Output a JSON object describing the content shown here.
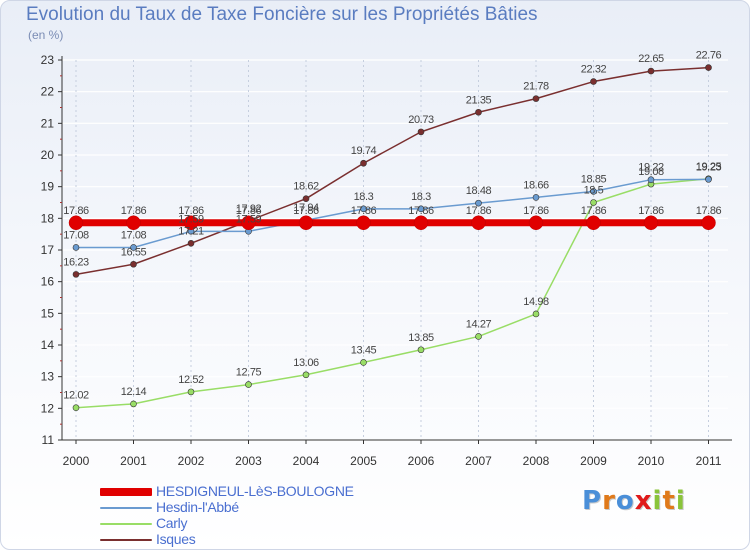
{
  "title": "Evolution du Taux de Taxe Foncière sur les Propriétés Bâties",
  "subtitle": "(en %)",
  "logo_text": "Proxiti",
  "chart_data": {
    "type": "line",
    "title": "Evolution du Taux de Taxe Foncière sur les Propriétés Bâties",
    "ylabel": "(en %)",
    "xlabel": "",
    "x": [
      "2000",
      "2001",
      "2002",
      "2003",
      "2004",
      "2005",
      "2006",
      "2007",
      "2008",
      "2009",
      "2010",
      "2011"
    ],
    "ylim": [
      11,
      23
    ],
    "yticks": [
      11,
      12,
      13,
      14,
      15,
      16,
      17,
      18,
      19,
      20,
      21,
      22,
      23
    ],
    "grid": true,
    "legend_position": "bottom",
    "series": [
      {
        "name": "HESDIGNEUL-LèS-BOULOGNE",
        "color": "#e00000",
        "values": [
          17.86,
          17.86,
          17.86,
          17.86,
          17.86,
          17.86,
          17.86,
          17.86,
          17.86,
          17.86,
          17.86,
          17.86
        ],
        "labels": [
          "17.86",
          "17.86",
          "17.86",
          "17.86",
          "17.86",
          "17.86",
          "17.86",
          "17.86",
          "17.86",
          "17.86",
          "17.86",
          "17.86"
        ]
      },
      {
        "name": "Hesdin-l'Abbé",
        "color": "#6a9bd0",
        "values": [
          17.08,
          17.08,
          17.59,
          17.59,
          17.94,
          18.3,
          18.3,
          18.48,
          18.66,
          18.85,
          19.22,
          19.23
        ],
        "labels": [
          "17.08",
          "17.08",
          "17.59",
          "17.59",
          "17.94",
          "18.3",
          "18.3",
          "18.48",
          "18.66",
          "18.85",
          "19.22",
          "19.23"
        ]
      },
      {
        "name": "Carly",
        "color": "#99dd66",
        "values": [
          12.02,
          12.14,
          12.52,
          12.75,
          13.06,
          13.45,
          13.85,
          14.27,
          14.98,
          18.5,
          19.08,
          19.25
        ],
        "labels": [
          "12.02",
          "12.14",
          "12.52",
          "12.75",
          "13.06",
          "13.45",
          "13.85",
          "14.27",
          "14.98",
          "18.5",
          "19.08",
          "19.25"
        ]
      },
      {
        "name": "Isques",
        "color": "#7a2f2f",
        "values": [
          16.23,
          16.55,
          17.21,
          17.92,
          18.62,
          19.74,
          20.73,
          21.35,
          21.78,
          22.32,
          22.65,
          22.76
        ],
        "labels": [
          "16.23",
          "16.55",
          "17.21",
          "17.92",
          "18.62",
          "19.74",
          "20.73",
          "21.35",
          "21.78",
          "22.32",
          "22.65",
          "22.76"
        ]
      }
    ]
  }
}
